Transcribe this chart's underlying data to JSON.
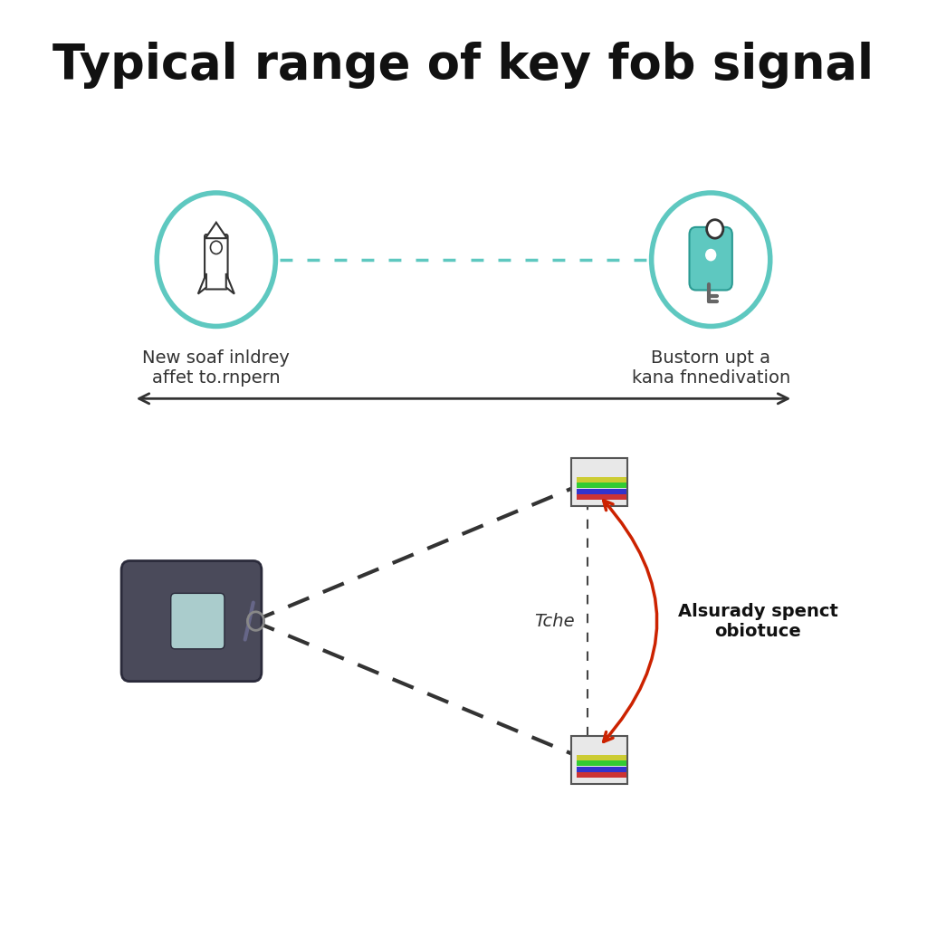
{
  "title": "Typical range of key fob signal",
  "title_fontsize": 38,
  "title_fontweight": "bold",
  "bg_color": "#ffffff",
  "teal_color": "#5ec8c0",
  "arrow_color": "#333333",
  "red_arrow_color": "#cc2200",
  "dashed_signal_color": "#5ec8c0",
  "dashed_triangle_color": "#333333",
  "label_left": "New soaf inldrey\naffet to.rnpern",
  "label_right": "Bustorn upt a\nkana fnnedivation",
  "label_center": "Tche",
  "label_right2": "Alsurady spenct\nobiotuce",
  "label_fontsize": 14
}
